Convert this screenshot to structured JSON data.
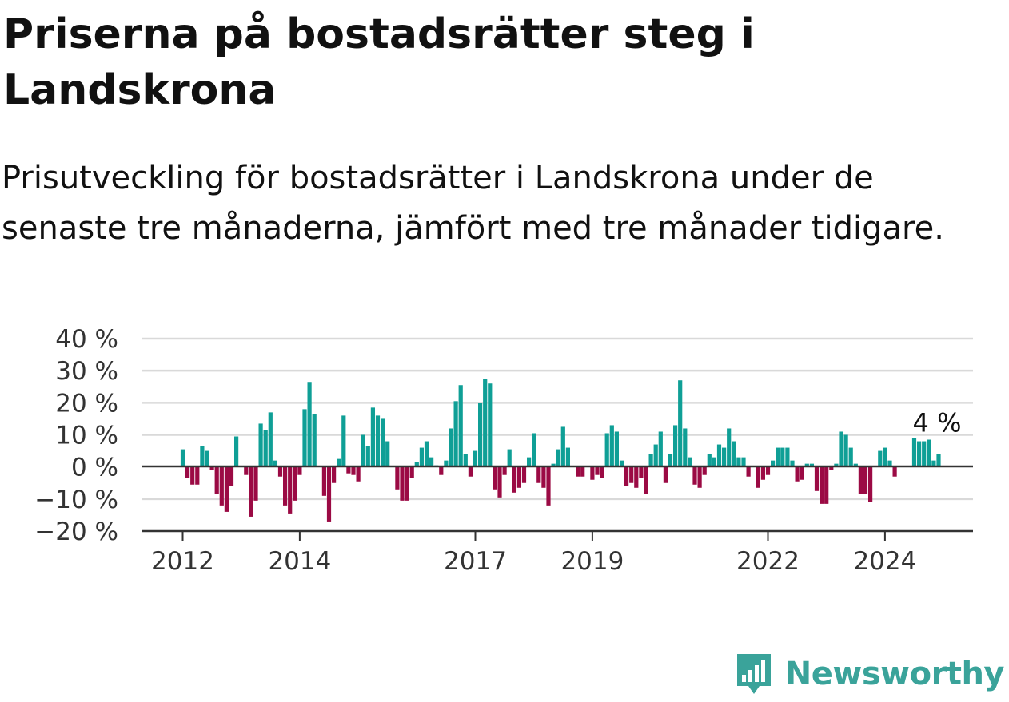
{
  "title": "Priserna på bostadsrätter steg i Landskrona",
  "subtitle": "Prisutveckling för bostadsrätter i Landskrona under de senaste tre månaderna, jämfört med tre månader tidigare.",
  "brand": "Newsworthy",
  "colors": {
    "positive": "#0f9f96",
    "negative": "#9b0a44",
    "grid": "#d9d9d9",
    "axis": "#333333",
    "brand": "#3aa39a"
  },
  "chart_data": {
    "type": "bar",
    "ylim": [
      -20,
      40
    ],
    "yticks": [
      -20,
      -10,
      0,
      10,
      20,
      30,
      40
    ],
    "ytick_labels": [
      "−20 %",
      "−10 %",
      "0 %",
      "10 %",
      "20 %",
      "30 %",
      "40 %"
    ],
    "grid": true,
    "x_start": "2012-01",
    "xticks": [
      {
        "month": "2012-01",
        "label": "2012"
      },
      {
        "month": "2014-01",
        "label": "2014"
      },
      {
        "month": "2017-01",
        "label": "2017"
      },
      {
        "month": "2019-01",
        "label": "2019"
      },
      {
        "month": "2022-01",
        "label": "2022"
      },
      {
        "month": "2024-01",
        "label": "2024"
      }
    ],
    "values": [
      5.5,
      -3.5,
      -5.5,
      -5.5,
      6.5,
      5,
      -1,
      -8.5,
      -12,
      -14,
      -6,
      9.5,
      0,
      -2.5,
      -15.5,
      -10.5,
      13.5,
      11.5,
      17,
      2,
      -3,
      -12,
      -14.5,
      -10.5,
      -2.5,
      18,
      26.5,
      16.5,
      0,
      -9,
      -17,
      -5,
      2.5,
      16,
      -2,
      -2.5,
      -4.5,
      10,
      6.5,
      18.5,
      16,
      15,
      8,
      0,
      -7,
      -10.5,
      -10.5,
      -3.5,
      1.5,
      6,
      8,
      3,
      0.5,
      -2.5,
      2,
      12,
      20.5,
      25.5,
      4,
      -3,
      5,
      20,
      27.5,
      26,
      -7,
      -9.5,
      -2.5,
      5.5,
      -8,
      -6.5,
      -5,
      3,
      10.5,
      -5,
      -6.5,
      -12,
      1,
      5.5,
      12.5,
      6,
      0,
      -3,
      -3,
      0,
      -4,
      -2.5,
      -3.5,
      10.5,
      13,
      11,
      2,
      -6,
      -5,
      -6.5,
      -3.5,
      -8.5,
      4,
      7,
      11,
      -5,
      4,
      13,
      27,
      12,
      3,
      -5.5,
      -6.5,
      -2.5,
      4,
      3,
      7,
      6,
      12,
      8,
      3,
      3,
      -3,
      0,
      -6.5,
      -4,
      -2.5,
      2,
      6,
      6,
      6,
      2,
      -4.5,
      -4,
      1,
      1,
      -7.5,
      -11.5,
      -11.5,
      -1,
      1,
      11,
      10,
      6,
      1,
      -8.5,
      -8.5,
      -11,
      0,
      5,
      6,
      2,
      -3,
      0,
      0,
      0,
      9,
      8,
      8,
      8.5,
      2,
      4
    ],
    "annotation": {
      "text": "4 %",
      "index": 155
    }
  }
}
